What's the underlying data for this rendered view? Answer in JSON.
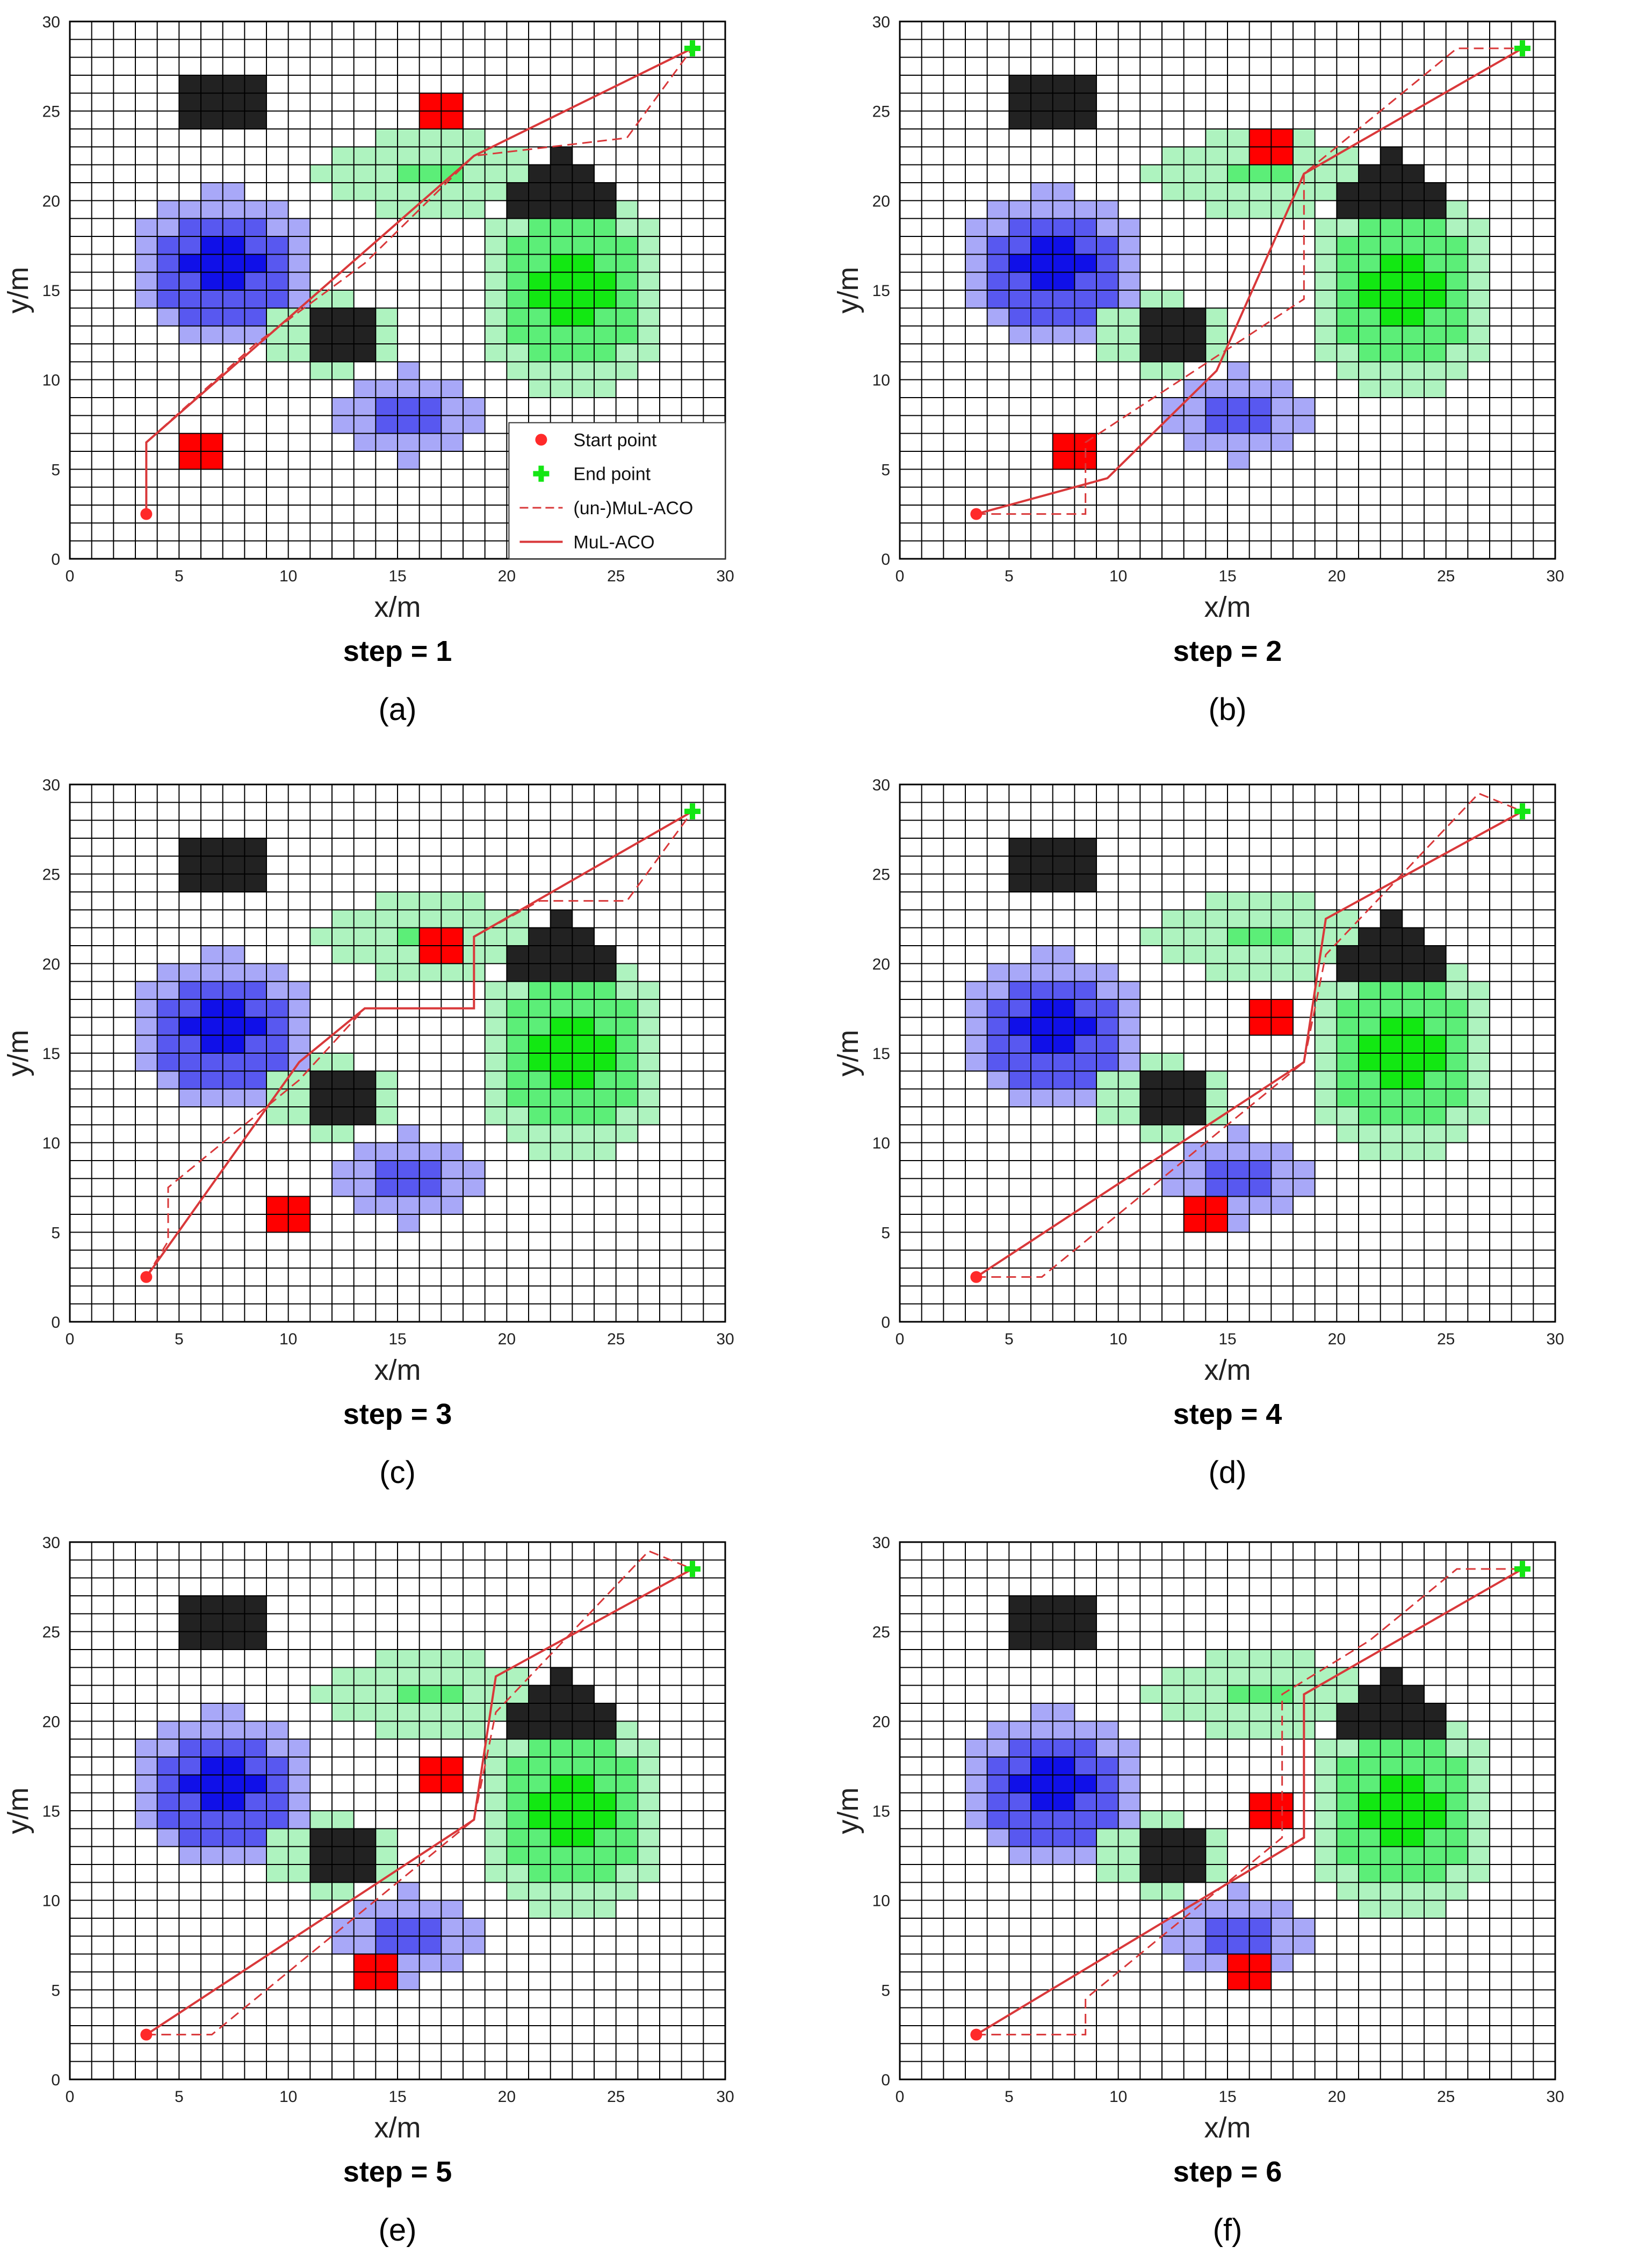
{
  "figure": {
    "legend_labels": [
      "Start point",
      "End point",
      "(un-)MuL-ACO",
      "MuL-ACO"
    ],
    "colors": {
      "grid": "#000000",
      "black_obstacle": "#222222",
      "red_obstacle": "#ff0000",
      "blue_core": "#1010e8",
      "blue_mid": "#5858f0",
      "blue_outer": "#a8a8f8",
      "green_core": "#12e812",
      "green_mid": "#5cee78",
      "green_outer": "#aef3bf",
      "path": "#d9383a",
      "start": "#ff2a2a",
      "end": "#14e614"
    }
  },
  "chart_data": [
    {
      "type": "scatter",
      "panel_label": "(a)",
      "step_label": "step = 1",
      "xlabel": "x/m",
      "ylabel": "y/m",
      "xlim": [
        0,
        30
      ],
      "ylim": [
        0,
        30
      ],
      "xticks": [
        "0",
        "5",
        "10",
        "15",
        "20",
        "25",
        "30"
      ],
      "yticks": [
        "0",
        "5",
        "10",
        "15",
        "20",
        "25",
        "30"
      ],
      "grid": true,
      "legend": "bottom-right",
      "start": [
        3.5,
        2.5
      ],
      "end": [
        28.5,
        28.5
      ],
      "red_obstacles": [
        [
          6,
          6
        ],
        [
          17,
          25
        ]
      ],
      "series": [
        {
          "name": "(un-)MuL-ACO",
          "x": [
            3.5,
            3.5,
            8.5,
            13.5,
            18.5,
            25.5,
            28.5
          ],
          "y": [
            2.5,
            6.5,
            12.0,
            16.5,
            22.5,
            23.5,
            28.5
          ]
        },
        {
          "name": "MuL-ACO",
          "x": [
            3.5,
            3.5,
            18.5,
            28.5
          ],
          "y": [
            2.5,
            6.5,
            22.5,
            28.5
          ]
        }
      ]
    },
    {
      "type": "scatter",
      "panel_label": "(b)",
      "step_label": "step = 2",
      "xlabel": "x/m",
      "ylabel": "y/m",
      "xlim": [
        0,
        30
      ],
      "ylim": [
        0,
        30
      ],
      "xticks": [
        "0",
        "5",
        "10",
        "15",
        "20",
        "25",
        "30"
      ],
      "yticks": [
        "0",
        "5",
        "10",
        "15",
        "20",
        "25",
        "30"
      ],
      "grid": true,
      "start": [
        3.5,
        2.5
      ],
      "end": [
        28.5,
        28.5
      ],
      "red_obstacles": [
        [
          8,
          6
        ],
        [
          17,
          23
        ]
      ],
      "series": [
        {
          "name": "(un-)MuL-ACO",
          "x": [
            3.5,
            3.5,
            8.5,
            8.5,
            13.5,
            18.5,
            18.5,
            25.5,
            28.5
          ],
          "y": [
            2.5,
            2.5,
            2.5,
            6.5,
            10.5,
            14.5,
            21.5,
            28.5,
            28.5
          ]
        },
        {
          "name": "MuL-ACO",
          "x": [
            3.5,
            9.5,
            14.5,
            18.5,
            28.5
          ],
          "y": [
            2.5,
            4.5,
            10.5,
            21.5,
            28.5
          ]
        }
      ]
    },
    {
      "type": "scatter",
      "panel_label": "(c)",
      "step_label": "step = 3",
      "xlabel": "x/m",
      "ylabel": "y/m",
      "xlim": [
        0,
        30
      ],
      "ylim": [
        0,
        30
      ],
      "xticks": [
        "0",
        "5",
        "10",
        "15",
        "20",
        "25",
        "30"
      ],
      "yticks": [
        "0",
        "5",
        "10",
        "15",
        "20",
        "25",
        "30"
      ],
      "grid": true,
      "start": [
        3.5,
        2.5
      ],
      "end": [
        28.5,
        28.5
      ],
      "red_obstacles": [
        [
          10,
          6
        ],
        [
          17,
          21
        ]
      ],
      "series": [
        {
          "name": "(un-)MuL-ACO",
          "x": [
            3.5,
            4.5,
            4.5,
            10.5,
            13.5,
            18.5,
            18.5,
            21.5,
            25.5,
            28.5
          ],
          "y": [
            2.5,
            4.5,
            7.5,
            13.5,
            17.5,
            17.5,
            21.5,
            23.5,
            23.5,
            28.5
          ]
        },
        {
          "name": "MuL-ACO",
          "x": [
            3.5,
            10.5,
            13.5,
            18.5,
            18.5,
            28.5
          ],
          "y": [
            2.5,
            14.5,
            17.5,
            17.5,
            21.5,
            28.5
          ]
        }
      ]
    },
    {
      "type": "scatter",
      "panel_label": "(d)",
      "step_label": "step = 4",
      "xlabel": "x/m",
      "ylabel": "y/m",
      "xlim": [
        0,
        30
      ],
      "ylim": [
        0,
        30
      ],
      "xticks": [
        "0",
        "5",
        "10",
        "15",
        "20",
        "25",
        "30"
      ],
      "yticks": [
        "0",
        "5",
        "10",
        "15",
        "20",
        "25",
        "30"
      ],
      "grid": true,
      "start": [
        3.5,
        2.5
      ],
      "end": [
        28.5,
        28.5
      ],
      "red_obstacles": [
        [
          14,
          6
        ],
        [
          17,
          17
        ]
      ],
      "series": [
        {
          "name": "(un-)MuL-ACO",
          "x": [
            3.5,
            6.5,
            10.5,
            14.5,
            18.5,
            19.5,
            26.5,
            28.5
          ],
          "y": [
            2.5,
            2.5,
            6.5,
            10.5,
            14.5,
            20.5,
            29.5,
            28.5
          ]
        },
        {
          "name": "MuL-ACO",
          "x": [
            3.5,
            18.5,
            19.5,
            28.5
          ],
          "y": [
            2.5,
            14.5,
            22.5,
            28.5
          ]
        }
      ]
    },
    {
      "type": "scatter",
      "panel_label": "(e)",
      "step_label": "step = 5",
      "xlabel": "x/m",
      "ylabel": "y/m",
      "xlim": [
        0,
        30
      ],
      "ylim": [
        0,
        30
      ],
      "xticks": [
        "0",
        "5",
        "10",
        "15",
        "20",
        "25",
        "30"
      ],
      "yticks": [
        "0",
        "5",
        "10",
        "15",
        "20",
        "25",
        "30"
      ],
      "grid": true,
      "start": [
        3.5,
        2.5
      ],
      "end": [
        28.5,
        28.5
      ],
      "red_obstacles": [
        [
          14,
          6
        ],
        [
          17,
          17
        ]
      ],
      "series": [
        {
          "name": "(un-)MuL-ACO",
          "x": [
            3.5,
            6.5,
            10.5,
            14.5,
            18.5,
            19.5,
            26.5,
            28.5
          ],
          "y": [
            2.5,
            2.5,
            6.5,
            10.5,
            14.5,
            20.5,
            29.5,
            28.5
          ]
        },
        {
          "name": "MuL-ACO",
          "x": [
            3.5,
            18.5,
            19.5,
            28.5
          ],
          "y": [
            2.5,
            14.5,
            22.5,
            28.5
          ]
        }
      ]
    },
    {
      "type": "scatter",
      "panel_label": "(f)",
      "step_label": "step = 6",
      "xlabel": "x/m",
      "ylabel": "y/m",
      "xlim": [
        0,
        30
      ],
      "ylim": [
        0,
        30
      ],
      "xticks": [
        "0",
        "5",
        "10",
        "15",
        "20",
        "25",
        "30"
      ],
      "yticks": [
        "0",
        "5",
        "10",
        "15",
        "20",
        "25",
        "30"
      ],
      "grid": true,
      "start": [
        3.5,
        2.5
      ],
      "end": [
        28.5,
        28.5
      ],
      "red_obstacles": [
        [
          16,
          6
        ],
        [
          17,
          15
        ]
      ],
      "series": [
        {
          "name": "(un-)MuL-ACO",
          "x": [
            3.5,
            8.5,
            8.5,
            13.5,
            17.5,
            17.5,
            21.5,
            25.5,
            28.5
          ],
          "y": [
            2.5,
            2.5,
            4.5,
            9.5,
            13.5,
            21.5,
            24.5,
            28.5,
            28.5
          ]
        },
        {
          "name": "MuL-ACO",
          "x": [
            3.5,
            18.5,
            18.5,
            28.5
          ],
          "y": [
            2.5,
            13.5,
            21.5,
            28.5
          ]
        }
      ]
    }
  ]
}
